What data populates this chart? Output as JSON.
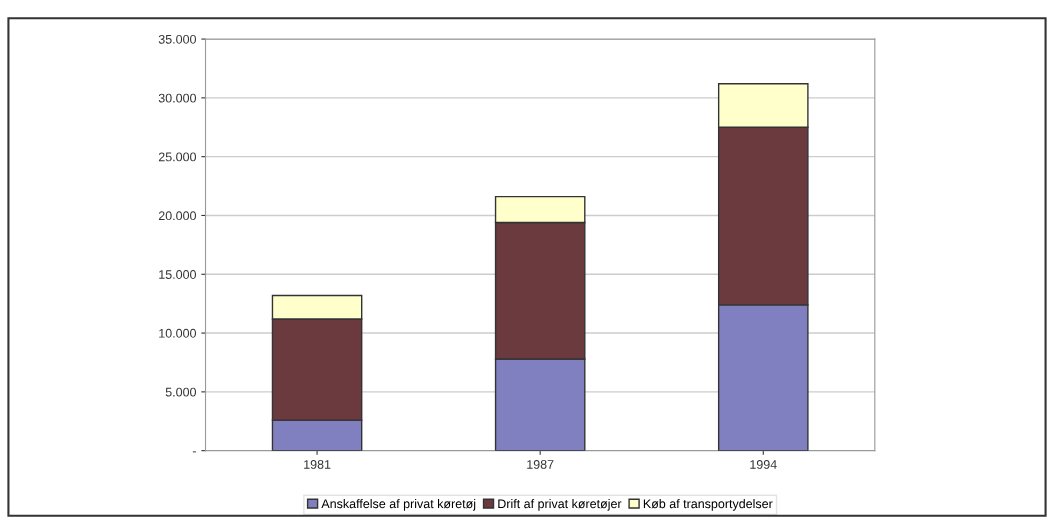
{
  "chart_data": {
    "type": "bar",
    "stacked": true,
    "categories": [
      "1981",
      "1987",
      "1994"
    ],
    "series": [
      {
        "name": "Anskaffelse af privat køretøj",
        "color": "#8080c0",
        "values": [
          2600,
          7800,
          12400
        ]
      },
      {
        "name": "Drift af privat køretøjer",
        "color": "#6b3a3e",
        "values": [
          8600,
          11600,
          15100
        ]
      },
      {
        "name": "Køb af transportydelser",
        "color": "#ffffcc",
        "values": [
          2000,
          2200,
          3700
        ]
      }
    ],
    "ylim": [
      0,
      35000
    ],
    "yticks": [
      {
        "value": 0,
        "label": "-"
      },
      {
        "value": 5000,
        "label": "5.000"
      },
      {
        "value": 10000,
        "label": "10.000"
      },
      {
        "value": 15000,
        "label": "15.000"
      },
      {
        "value": 20000,
        "label": "20.000"
      },
      {
        "value": 25000,
        "label": "25.000"
      },
      {
        "value": 30000,
        "label": "30.000"
      },
      {
        "value": 35000,
        "label": "35.000"
      }
    ],
    "grid": "y",
    "legend": "bottom"
  }
}
